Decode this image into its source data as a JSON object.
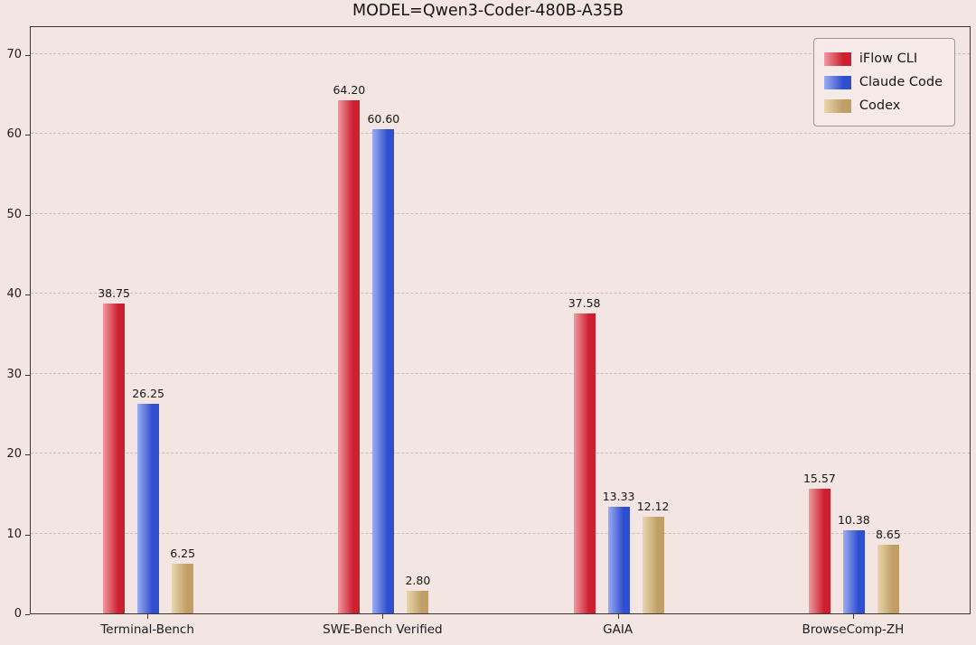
{
  "title": "MODEL=Qwen3-Coder-480B-A35B",
  "chart_data": {
    "type": "bar",
    "title": "MODEL=Qwen3-Coder-480B-A35B",
    "categories": [
      "Terminal-Bench",
      "SWE-Bench Verified",
      "GAIA",
      "BrowseComp-ZH"
    ],
    "series": [
      {
        "name": "iFlow CLI",
        "values": [
          38.75,
          64.2,
          37.58,
          15.57
        ],
        "color": "#cd1f30",
        "color_light": "#ef9aa1"
      },
      {
        "name": "Claude Code",
        "values": [
          26.25,
          60.6,
          13.33,
          10.38
        ],
        "color": "#2f4ed0",
        "color_light": "#9dadf1"
      },
      {
        "name": "Codex",
        "values": [
          6.25,
          2.8,
          12.12,
          8.65
        ],
        "color": "#c09e66",
        "color_light": "#e8d6ae"
      }
    ],
    "ylim": [
      0,
      73.6
    ],
    "yticks": [
      0,
      10,
      20,
      30,
      40,
      50,
      60,
      70
    ],
    "value_label_decimals": 2,
    "grid": "horizontal-dashed",
    "legend_position": "upper-right",
    "background_color": "#f2e5e2",
    "xlabel": "",
    "ylabel": ""
  }
}
